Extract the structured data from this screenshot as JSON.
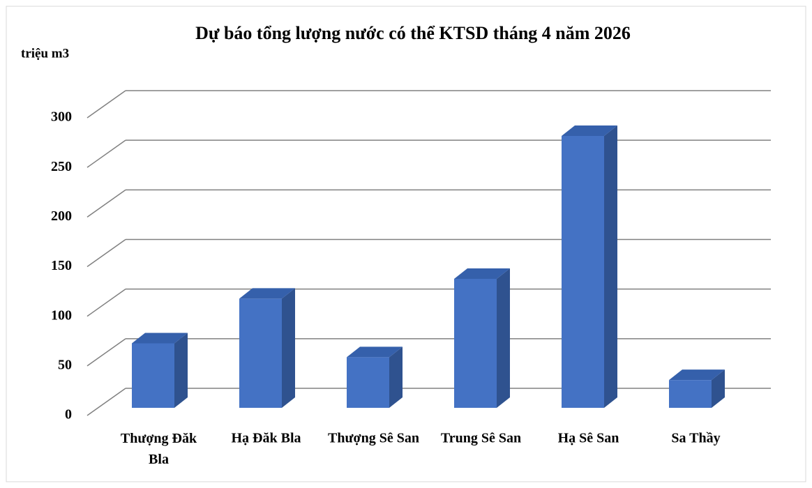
{
  "chart_data": {
    "type": "bar3d",
    "title": "Dự báo tổng lượng nước có thể KTSD tháng 4 năm 2026",
    "y_axis_label": "triệu m3",
    "categories": [
      "Thượng Đăk Bla",
      "Hạ Đăk Bla",
      "Thượng Sê San",
      "Trung Sê San",
      "Hạ Sê San",
      "Sa Thầy"
    ],
    "values": [
      65,
      110,
      51,
      130,
      274,
      28
    ],
    "color": "#4472c4",
    "ylim": [
      0,
      300
    ],
    "yticks": [
      0,
      50,
      100,
      150,
      200,
      250,
      300
    ],
    "grid": true
  }
}
